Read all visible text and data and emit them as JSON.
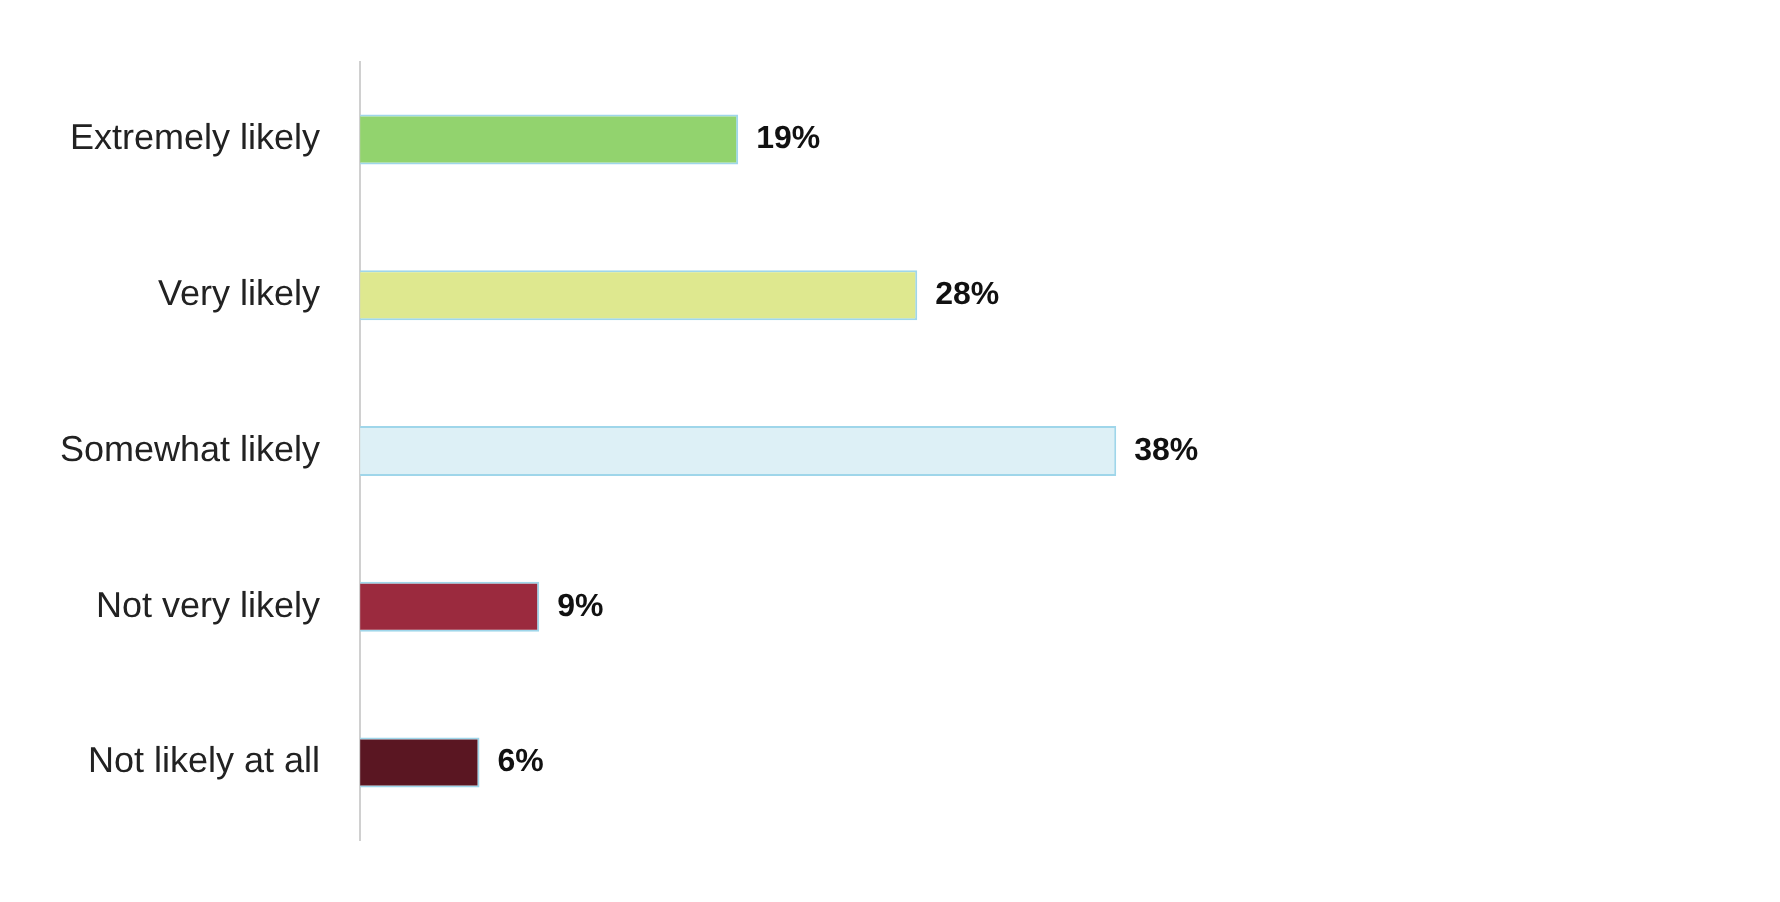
{
  "chart_data": {
    "type": "bar",
    "orientation": "horizontal",
    "categories": [
      "Extremely likely",
      "Very likely",
      "Somewhat likely",
      "Not very likely",
      "Not likely at all"
    ],
    "values": [
      19,
      28,
      38,
      9,
      6
    ],
    "colors": [
      "#92d36e",
      "#dee88f",
      "#ddf0f6",
      "#9b2a3e",
      "#5a1622"
    ],
    "value_labels": [
      "19%",
      "28%",
      "38%",
      "9%",
      "6%"
    ],
    "tick_labels": "y",
    "legend": false
  }
}
